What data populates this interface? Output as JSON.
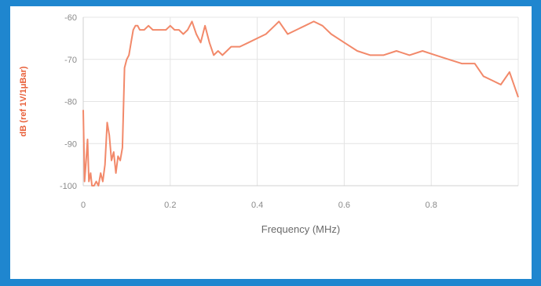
{
  "chart_data": {
    "type": "line",
    "title": "",
    "xlabel": "Frequency (MHz)",
    "ylabel": "dB (ref 1V/1μBar)",
    "xlim": [
      0,
      1
    ],
    "ylim": [
      -100,
      -60
    ],
    "xticks": [
      0,
      0.2,
      0.4,
      0.6,
      0.8,
      1
    ],
    "xtick_labels": [
      "0",
      "0.2",
      "0.4",
      "0.6",
      "0.8",
      ""
    ],
    "yticks": [
      -100,
      -90,
      -80,
      -70,
      -60
    ],
    "ytick_labels": [
      "-100",
      "-90",
      "-80",
      "-70",
      "-60"
    ],
    "grid": true,
    "legend": "none",
    "series": [
      {
        "color": "#f2896a",
        "x": [
          0.0,
          0.003,
          0.006,
          0.01,
          0.013,
          0.017,
          0.02,
          0.025,
          0.03,
          0.035,
          0.04,
          0.045,
          0.05,
          0.055,
          0.06,
          0.065,
          0.07,
          0.075,
          0.08,
          0.085,
          0.09,
          0.095,
          0.1,
          0.105,
          0.11,
          0.115,
          0.12,
          0.125,
          0.13,
          0.14,
          0.15,
          0.16,
          0.17,
          0.18,
          0.19,
          0.2,
          0.21,
          0.22,
          0.23,
          0.24,
          0.25,
          0.26,
          0.27,
          0.28,
          0.29,
          0.3,
          0.31,
          0.32,
          0.34,
          0.36,
          0.38,
          0.4,
          0.42,
          0.44,
          0.45,
          0.47,
          0.49,
          0.51,
          0.53,
          0.55,
          0.57,
          0.6,
          0.63,
          0.66,
          0.69,
          0.72,
          0.75,
          0.78,
          0.81,
          0.84,
          0.87,
          0.9,
          0.92,
          0.94,
          0.96,
          0.98,
          1.0
        ],
        "y": [
          -82,
          -99,
          -95,
          -89,
          -99,
          -97,
          -100,
          -100,
          -99,
          -100,
          -97,
          -99,
          -95,
          -85,
          -88,
          -94,
          -92,
          -97,
          -93,
          -94,
          -91,
          -72,
          -70,
          -69,
          -66,
          -63,
          -62,
          -62,
          -63,
          -63,
          -62,
          -63,
          -63,
          -63,
          -63,
          -62,
          -63,
          -63,
          -64,
          -63,
          -61,
          -64,
          -66,
          -62,
          -66,
          -69,
          -68,
          -69,
          -67,
          -67,
          -66,
          -65,
          -64,
          -62,
          -61,
          -64,
          -63,
          -62,
          -61,
          -62,
          -64,
          -66,
          -68,
          -69,
          -69,
          -68,
          -69,
          -68,
          -69,
          -70,
          -71,
          -71,
          -74,
          -75,
          -76,
          -73,
          -79
        ]
      }
    ]
  }
}
